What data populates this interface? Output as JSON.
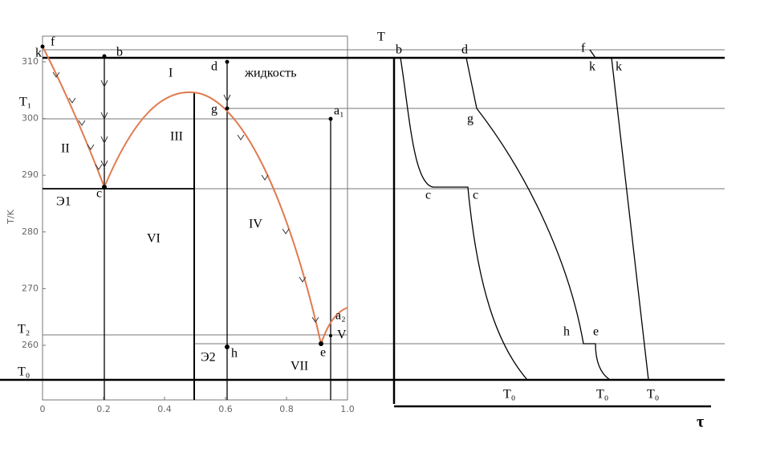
{
  "left_panel": {
    "y_axis_label": "T/K",
    "x_ticks": [
      "0",
      "0.2",
      "0.4",
      "0.6",
      "0.8",
      "1.0"
    ],
    "y_ticks": [
      "310",
      "300",
      "290",
      "280",
      "270",
      "260"
    ],
    "labels": [
      "k",
      "f",
      "b",
      "I",
      "d",
      "жидкость",
      "T₁",
      "g",
      "a₁",
      "II",
      "III",
      "Э1",
      "c",
      "VI",
      "IV",
      "T₂",
      "a₂",
      "V",
      "Э2",
      "h",
      "VII",
      "e",
      "T₀"
    ]
  },
  "right_panel": {
    "labels": [
      "T",
      "b",
      "d",
      "f",
      "k",
      "k",
      "g",
      "c",
      "c",
      "h",
      "e",
      "T₀",
      "T₀",
      "T₀",
      "τ"
    ]
  }
}
